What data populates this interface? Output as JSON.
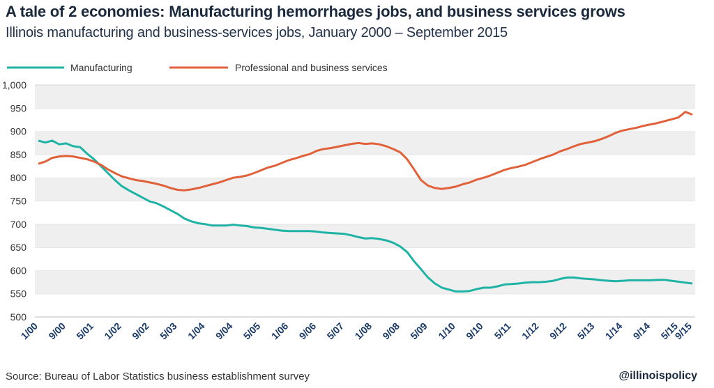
{
  "header": {
    "title": "A tale of 2 economies: Manufacturing hemorrhages jobs, and business services grows",
    "subtitle": "Illinois manufacturing and business-services jobs, January 2000 – September 2015"
  },
  "footer": {
    "source": "Source: Bureau of Labor Statistics business establishment survey",
    "handle": "@illinoispolicy"
  },
  "colors": {
    "manufacturing": "#1fb3a6",
    "business": "#e0613a",
    "band": "#efefef"
  },
  "chart_data": {
    "type": "line",
    "title": "A tale of 2 economies: Manufacturing hemorrhages jobs, and business services grows",
    "subtitle": "Illinois manufacturing and business-services jobs, January 2000 – September 2015",
    "ylim": [
      500,
      1000
    ],
    "yticks": [
      "1,000",
      "950",
      "900",
      "850",
      "800",
      "750",
      "700",
      "650",
      "600",
      "550",
      "500"
    ],
    "xticks": [
      "1/00",
      "9/00",
      "5/01",
      "1/02",
      "9/02",
      "5/03",
      "1/04",
      "9/04",
      "5/05",
      "1/06",
      "9/06",
      "5/07",
      "1/08",
      "9/08",
      "5/09",
      "1/10",
      "9/10",
      "5/11",
      "1/12",
      "9/12",
      "5/13",
      "1/14",
      "9/14",
      "5/15",
      "9/15"
    ],
    "legend_position": "top-left",
    "grid": "alternating horizontal bands",
    "series": [
      {
        "name": "Manufacturing",
        "points": [
          [
            "1/00",
            880
          ],
          [
            "3/00",
            876
          ],
          [
            "5/00",
            880
          ],
          [
            "7/00",
            872
          ],
          [
            "9/00",
            874
          ],
          [
            "11/00",
            868
          ],
          [
            "1/01",
            866
          ],
          [
            "3/01",
            852
          ],
          [
            "5/01",
            840
          ],
          [
            "7/01",
            825
          ],
          [
            "9/01",
            810
          ],
          [
            "11/01",
            795
          ],
          [
            "1/02",
            782
          ],
          [
            "3/02",
            773
          ],
          [
            "5/02",
            765
          ],
          [
            "7/02",
            757
          ],
          [
            "9/02",
            749
          ],
          [
            "11/02",
            745
          ],
          [
            "1/03",
            738
          ],
          [
            "3/03",
            730
          ],
          [
            "5/03",
            722
          ],
          [
            "7/03",
            712
          ],
          [
            "9/03",
            706
          ],
          [
            "11/03",
            702
          ],
          [
            "1/04",
            700
          ],
          [
            "3/04",
            697
          ],
          [
            "5/04",
            697
          ],
          [
            "7/04",
            697
          ],
          [
            "9/04",
            699
          ],
          [
            "11/04",
            697
          ],
          [
            "1/05",
            696
          ],
          [
            "3/05",
            693
          ],
          [
            "5/05",
            692
          ],
          [
            "7/05",
            690
          ],
          [
            "9/05",
            688
          ],
          [
            "11/05",
            686
          ],
          [
            "1/06",
            685
          ],
          [
            "3/06",
            685
          ],
          [
            "5/06",
            685
          ],
          [
            "7/06",
            685
          ],
          [
            "9/06",
            684
          ],
          [
            "11/06",
            682
          ],
          [
            "1/07",
            681
          ],
          [
            "3/07",
            680
          ],
          [
            "5/07",
            679
          ],
          [
            "7/07",
            676
          ],
          [
            "9/07",
            672
          ],
          [
            "11/07",
            669
          ],
          [
            "1/08",
            670
          ],
          [
            "3/08",
            668
          ],
          [
            "5/08",
            665
          ],
          [
            "7/08",
            660
          ],
          [
            "9/08",
            652
          ],
          [
            "11/08",
            640
          ],
          [
            "1/09",
            620
          ],
          [
            "3/09",
            603
          ],
          [
            "5/09",
            585
          ],
          [
            "7/09",
            572
          ],
          [
            "9/09",
            563
          ],
          [
            "11/09",
            559
          ],
          [
            "1/10",
            555
          ],
          [
            "3/10",
            555
          ],
          [
            "5/10",
            556
          ],
          [
            "7/10",
            560
          ],
          [
            "9/10",
            563
          ],
          [
            "11/10",
            563
          ],
          [
            "1/11",
            566
          ],
          [
            "3/11",
            570
          ],
          [
            "5/11",
            571
          ],
          [
            "7/11",
            572
          ],
          [
            "9/11",
            574
          ],
          [
            "11/11",
            575
          ],
          [
            "1/12",
            575
          ],
          [
            "3/12",
            576
          ],
          [
            "5/12",
            578
          ],
          [
            "7/12",
            582
          ],
          [
            "9/12",
            585
          ],
          [
            "11/12",
            585
          ],
          [
            "1/13",
            583
          ],
          [
            "3/13",
            582
          ],
          [
            "5/13",
            581
          ],
          [
            "7/13",
            579
          ],
          [
            "9/13",
            578
          ],
          [
            "11/13",
            577
          ],
          [
            "1/14",
            578
          ],
          [
            "3/14",
            579
          ],
          [
            "5/14",
            579
          ],
          [
            "7/14",
            579
          ],
          [
            "9/14",
            579
          ],
          [
            "11/14",
            580
          ],
          [
            "1/15",
            580
          ],
          [
            "3/15",
            578
          ],
          [
            "5/15",
            576
          ],
          [
            "7/15",
            574
          ],
          [
            "9/15",
            572
          ]
        ]
      },
      {
        "name": "Professional and business services",
        "points": [
          [
            "1/00",
            830
          ],
          [
            "3/00",
            835
          ],
          [
            "5/00",
            843
          ],
          [
            "7/00",
            846
          ],
          [
            "9/00",
            847
          ],
          [
            "11/00",
            846
          ],
          [
            "1/01",
            843
          ],
          [
            "3/01",
            840
          ],
          [
            "5/01",
            835
          ],
          [
            "7/01",
            828
          ],
          [
            "9/01",
            818
          ],
          [
            "11/01",
            810
          ],
          [
            "1/02",
            803
          ],
          [
            "3/02",
            799
          ],
          [
            "5/02",
            795
          ],
          [
            "7/02",
            793
          ],
          [
            "9/02",
            790
          ],
          [
            "11/02",
            787
          ],
          [
            "1/03",
            783
          ],
          [
            "3/03",
            778
          ],
          [
            "5/03",
            774
          ],
          [
            "7/03",
            773
          ],
          [
            "9/03",
            775
          ],
          [
            "11/03",
            778
          ],
          [
            "1/04",
            782
          ],
          [
            "3/04",
            786
          ],
          [
            "5/04",
            790
          ],
          [
            "7/04",
            795
          ],
          [
            "9/04",
            800
          ],
          [
            "11/04",
            802
          ],
          [
            "1/05",
            805
          ],
          [
            "3/05",
            810
          ],
          [
            "5/05",
            816
          ],
          [
            "7/05",
            822
          ],
          [
            "9/05",
            826
          ],
          [
            "11/05",
            832
          ],
          [
            "1/06",
            838
          ],
          [
            "3/06",
            842
          ],
          [
            "5/06",
            847
          ],
          [
            "7/06",
            851
          ],
          [
            "9/06",
            858
          ],
          [
            "11/06",
            862
          ],
          [
            "1/07",
            864
          ],
          [
            "3/07",
            867
          ],
          [
            "5/07",
            870
          ],
          [
            "7/07",
            873
          ],
          [
            "9/07",
            875
          ],
          [
            "11/07",
            873
          ],
          [
            "1/08",
            874
          ],
          [
            "3/08",
            872
          ],
          [
            "5/08",
            868
          ],
          [
            "7/08",
            862
          ],
          [
            "9/08",
            855
          ],
          [
            "11/08",
            840
          ],
          [
            "1/09",
            818
          ],
          [
            "3/09",
            795
          ],
          [
            "5/09",
            783
          ],
          [
            "7/09",
            778
          ],
          [
            "9/09",
            776
          ],
          [
            "11/09",
            778
          ],
          [
            "1/10",
            781
          ],
          [
            "3/10",
            786
          ],
          [
            "5/10",
            790
          ],
          [
            "7/10",
            796
          ],
          [
            "9/10",
            800
          ],
          [
            "11/10",
            805
          ],
          [
            "1/11",
            811
          ],
          [
            "3/11",
            817
          ],
          [
            "5/11",
            821
          ],
          [
            "7/11",
            824
          ],
          [
            "9/11",
            828
          ],
          [
            "11/11",
            834
          ],
          [
            "1/12",
            840
          ],
          [
            "3/12",
            845
          ],
          [
            "5/12",
            850
          ],
          [
            "7/12",
            857
          ],
          [
            "9/12",
            862
          ],
          [
            "11/12",
            868
          ],
          [
            "1/13",
            873
          ],
          [
            "3/13",
            876
          ],
          [
            "5/13",
            879
          ],
          [
            "7/13",
            884
          ],
          [
            "9/13",
            890
          ],
          [
            "11/13",
            897
          ],
          [
            "1/14",
            902
          ],
          [
            "3/14",
            905
          ],
          [
            "5/14",
            908
          ],
          [
            "7/14",
            912
          ],
          [
            "9/14",
            915
          ],
          [
            "11/14",
            918
          ],
          [
            "1/15",
            922
          ],
          [
            "3/15",
            926
          ],
          [
            "5/15",
            930
          ],
          [
            "7/15",
            942
          ],
          [
            "9/15",
            936
          ]
        ]
      }
    ]
  }
}
